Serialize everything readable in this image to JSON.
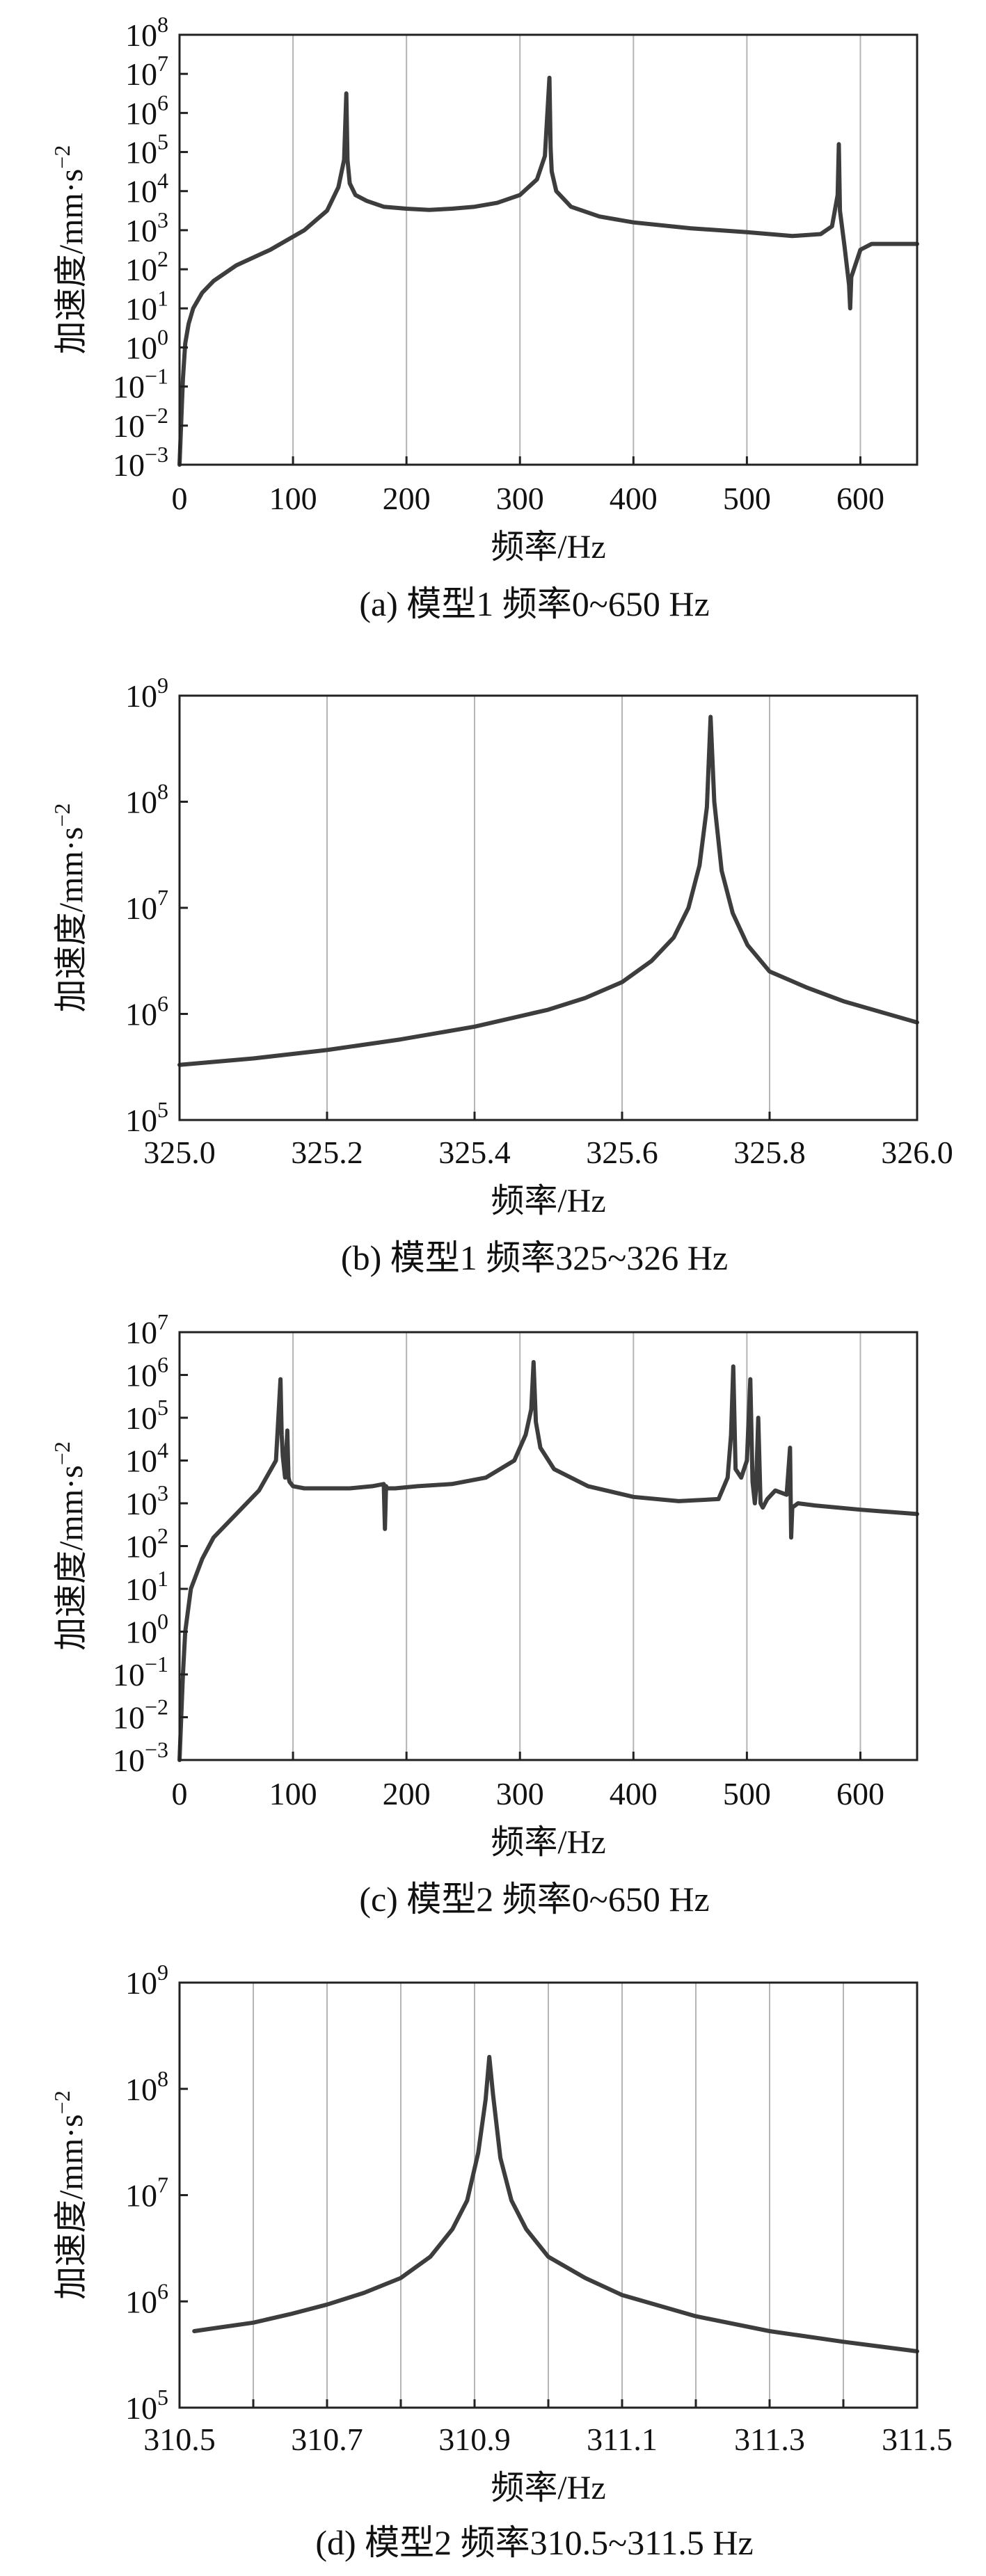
{
  "chart_data": [
    {
      "type": "line",
      "caption": "(a) 模型1 频率0~650 Hz",
      "xlabel": "频率/Hz",
      "ylabel": "加速度/mm·s",
      "ylabel_sup": "−2",
      "x_scale": "linear",
      "y_scale": "log",
      "xlim": [
        0,
        650
      ],
      "ylim_exp": [
        -3,
        8
      ],
      "x_ticks": [
        0,
        100,
        200,
        300,
        400,
        500,
        600
      ],
      "x_tick_labels": [
        "0",
        "100",
        "200",
        "300",
        "400",
        "500",
        "600"
      ],
      "y_tick_base": "10",
      "y_tick_exponents": [
        "−3",
        "−2",
        "−1",
        "0",
        "1",
        "2",
        "3",
        "4",
        "5",
        "6",
        "7",
        "8"
      ],
      "y_tick_values": [
        -3,
        -2,
        -1,
        0,
        1,
        2,
        3,
        4,
        5,
        6,
        7,
        8
      ],
      "grid": "vertical",
      "series": [
        {
          "x": [
            0,
            3,
            5,
            8,
            12,
            20,
            30,
            50,
            80,
            110,
            130,
            140,
            145,
            147,
            148,
            150,
            155,
            165,
            180,
            200,
            220,
            240,
            260,
            280,
            300,
            315,
            322,
            326,
            327,
            328,
            332,
            345,
            370,
            400,
            450,
            500,
            540,
            565,
            575,
            580,
            581,
            582,
            586,
            590,
            591,
            592,
            600,
            610,
            625,
            650
          ],
          "log10_y": [
            -3.0,
            -0.8,
            0.1,
            0.6,
            1.0,
            1.4,
            1.7,
            2.1,
            2.5,
            3.0,
            3.5,
            4.1,
            4.8,
            6.5,
            4.8,
            4.2,
            3.9,
            3.75,
            3.6,
            3.55,
            3.52,
            3.55,
            3.6,
            3.7,
            3.9,
            4.3,
            4.9,
            6.9,
            5.1,
            4.5,
            4.0,
            3.6,
            3.35,
            3.2,
            3.05,
            2.95,
            2.85,
            2.9,
            3.1,
            3.9,
            5.2,
            3.5,
            2.6,
            1.6,
            1.0,
            1.8,
            2.5,
            2.65,
            2.65,
            2.65
          ]
        }
      ]
    },
    {
      "type": "line",
      "caption": "(b) 模型1 频率325~326 Hz",
      "xlabel": "频率/Hz",
      "ylabel": "加速度/mm·s",
      "ylabel_sup": "−2",
      "x_scale": "linear",
      "y_scale": "log",
      "xlim": [
        325.0,
        326.0
      ],
      "ylim_exp": [
        5,
        9
      ],
      "x_ticks": [
        325.0,
        325.2,
        325.4,
        325.6,
        325.8,
        326.0
      ],
      "x_tick_labels": [
        "325.0",
        "325.2",
        "325.4",
        "325.6",
        "325.8",
        "326.0"
      ],
      "y_tick_base": "10",
      "y_tick_exponents": [
        "5",
        "6",
        "7",
        "8",
        "9"
      ],
      "y_tick_values": [
        5,
        6,
        7,
        8,
        9
      ],
      "grid": "vertical",
      "series": [
        {
          "x": [
            325.0,
            325.1,
            325.2,
            325.3,
            325.4,
            325.5,
            325.55,
            325.6,
            325.64,
            325.67,
            325.69,
            325.705,
            325.715,
            325.72,
            325.725,
            325.735,
            325.75,
            325.77,
            325.8,
            325.85,
            325.9,
            325.95,
            326.0
          ],
          "log10_y": [
            5.52,
            5.58,
            5.66,
            5.76,
            5.88,
            6.04,
            6.15,
            6.3,
            6.5,
            6.72,
            7.0,
            7.4,
            7.95,
            8.8,
            8.0,
            7.35,
            6.95,
            6.65,
            6.4,
            6.25,
            6.12,
            6.02,
            5.92
          ]
        }
      ]
    },
    {
      "type": "line",
      "caption": "(c) 模型2 频率0~650 Hz",
      "xlabel": "频率/Hz",
      "ylabel": "加速度/mm·s",
      "ylabel_sup": "−2",
      "x_scale": "linear",
      "y_scale": "log",
      "xlim": [
        0,
        650
      ],
      "ylim_exp": [
        -3,
        7
      ],
      "x_ticks": [
        0,
        100,
        200,
        300,
        400,
        500,
        600
      ],
      "x_tick_labels": [
        "0",
        "100",
        "200",
        "300",
        "400",
        "500",
        "600"
      ],
      "y_tick_base": "10",
      "y_tick_exponents": [
        "−3",
        "−2",
        "−1",
        "0",
        "1",
        "2",
        "3",
        "4",
        "5",
        "6",
        "7"
      ],
      "y_tick_values": [
        -3,
        -2,
        -1,
        0,
        1,
        2,
        3,
        4,
        5,
        6,
        7
      ],
      "grid": "vertical",
      "series": [
        {
          "x": [
            0,
            3,
            5,
            10,
            20,
            30,
            50,
            70,
            85,
            89,
            90,
            91,
            93,
            95,
            96,
            97,
            100,
            110,
            130,
            150,
            170,
            180,
            181,
            182,
            183,
            190,
            210,
            240,
            270,
            295,
            305,
            310,
            312,
            314,
            318,
            330,
            360,
            400,
            440,
            475,
            483,
            486,
            488,
            490,
            495,
            500,
            503,
            505,
            507,
            508,
            510,
            512,
            514,
            518,
            525,
            535,
            538,
            539,
            540,
            545,
            560,
            600,
            650
          ],
          "log10_y": [
            -3.0,
            -1.0,
            0.0,
            1.0,
            1.7,
            2.2,
            2.75,
            3.3,
            4.0,
            5.9,
            4.6,
            4.1,
            3.6,
            4.7,
            3.6,
            3.5,
            3.4,
            3.35,
            3.35,
            3.35,
            3.4,
            3.45,
            2.4,
            3.4,
            3.35,
            3.35,
            3.4,
            3.45,
            3.6,
            4.0,
            4.6,
            5.2,
            6.3,
            4.9,
            4.3,
            3.8,
            3.4,
            3.15,
            3.05,
            3.1,
            3.6,
            4.6,
            6.2,
            3.8,
            3.6,
            4.0,
            5.9,
            3.5,
            3.0,
            3.3,
            5.0,
            3.0,
            2.9,
            3.1,
            3.3,
            3.2,
            4.3,
            2.2,
            2.9,
            3.0,
            2.95,
            2.85,
            2.75
          ]
        }
      ]
    },
    {
      "type": "line",
      "caption": "(d) 模型2 频率310.5~311.5 Hz",
      "xlabel": "频率/Hz",
      "ylabel": "加速度/mm·s",
      "ylabel_sup": "−2",
      "x_scale": "linear",
      "y_scale": "log",
      "xlim": [
        310.5,
        311.5
      ],
      "ylim_exp": [
        5,
        9
      ],
      "x_ticks": [
        310.5,
        310.6,
        310.7,
        310.8,
        310.9,
        311.0,
        311.1,
        311.2,
        311.3,
        311.4,
        311.5
      ],
      "x_tick_labels": [
        "310.5",
        "",
        "310.7",
        "",
        "310.9",
        "",
        "311.1",
        "",
        "311.3",
        "",
        "311.5"
      ],
      "y_tick_base": "10",
      "y_tick_exponents": [
        "5",
        "6",
        "7",
        "8",
        "9"
      ],
      "y_tick_values": [
        5,
        6,
        7,
        8,
        9
      ],
      "grid": "vertical",
      "series": [
        {
          "x": [
            310.52,
            310.55,
            310.6,
            310.65,
            310.7,
            310.75,
            310.8,
            310.84,
            310.87,
            310.89,
            310.905,
            310.915,
            310.92,
            310.925,
            310.935,
            310.95,
            310.97,
            311.0,
            311.05,
            311.1,
            311.2,
            311.3,
            311.4,
            311.5
          ],
          "log10_y": [
            5.72,
            5.75,
            5.8,
            5.88,
            5.97,
            6.08,
            6.22,
            6.42,
            6.68,
            6.95,
            7.4,
            7.9,
            8.3,
            7.95,
            7.35,
            6.95,
            6.68,
            6.42,
            6.22,
            6.06,
            5.86,
            5.72,
            5.62,
            5.53
          ]
        }
      ]
    }
  ]
}
